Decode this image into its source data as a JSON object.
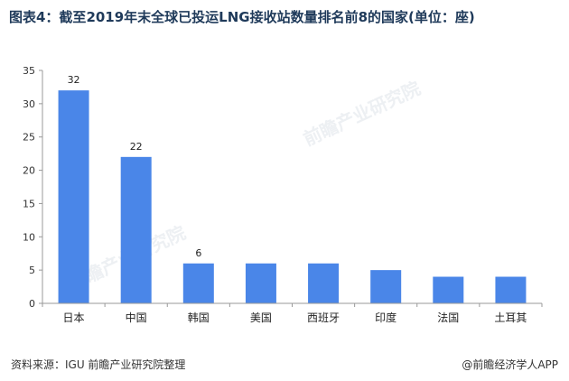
{
  "title": "图表4：截至2019年末全球已投运LNG接收站数量排名前8的国家(单位：座)",
  "footer": {
    "source": "资料来源：IGU 前瞻产业研究院整理",
    "brand": "@前瞻经济学人APP"
  },
  "watermark": "前瞻产业研究院",
  "colors": {
    "bar": "#4a86e8",
    "axis": "#999999"
  },
  "chart_data": {
    "type": "bar",
    "title": "图表4：截至2019年末全球已投运LNG接收站数量排名前8的国家(单位：座)",
    "categories": [
      "日本",
      "中国",
      "韩国",
      "美国",
      "西班牙",
      "印度",
      "法国",
      "土耳其"
    ],
    "values": [
      32,
      22,
      6,
      6,
      6,
      5,
      4,
      4
    ],
    "data_labels": [
      "32",
      "22",
      "6",
      "",
      "",
      "",
      "",
      ""
    ],
    "ylim": [
      0,
      35
    ],
    "yticks": [
      "0",
      "5",
      "10",
      "15",
      "20",
      "25",
      "30",
      "35"
    ],
    "xlabel": "",
    "ylabel": "",
    "grid": false,
    "legend": "none"
  }
}
